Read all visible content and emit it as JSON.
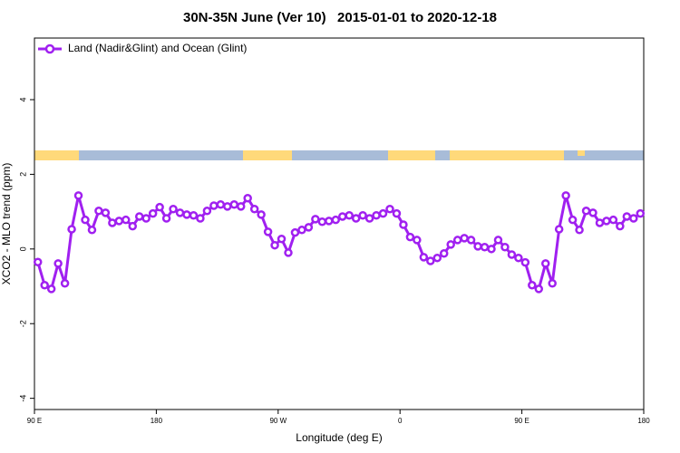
{
  "chart_data": {
    "type": "line",
    "title": "30N-35N June (Ver 10)   2015-01-01 to 2020-12-18",
    "x_label": "Longitude (deg E)",
    "y_label": "XCO2 - MLO trend (ppm)",
    "xlim": [
      90,
      540
    ],
    "xticks": [
      {
        "value": 90,
        "label": "90 E"
      },
      {
        "value": 180,
        "label": "180"
      },
      {
        "value": 270,
        "label": "90 W"
      },
      {
        "value": 360,
        "label": "0"
      },
      {
        "value": 450,
        "label": "90 E"
      },
      {
        "value": 540,
        "label": "180"
      }
    ],
    "ylim": [
      -4.3,
      5.65
    ],
    "yticks": [
      -4,
      -2,
      0,
      2,
      4
    ],
    "legend": "top-left",
    "x": [
      92.5,
      97.5,
      102.5,
      107.5,
      112.5,
      117.5,
      122.5,
      127.5,
      132.5,
      137.5,
      142.5,
      147.5,
      152.5,
      157.5,
      162.5,
      167.5,
      172.5,
      177.5,
      182.5,
      187.5,
      192.5,
      197.5,
      202.5,
      207.5,
      212.5,
      217.5,
      222.5,
      227.5,
      232.5,
      237.5,
      242.5,
      247.5,
      252.5,
      257.5,
      262.5,
      267.5,
      272.5,
      277.5,
      282.5,
      287.5,
      292.5,
      297.5,
      302.5,
      307.5,
      312.5,
      317.5,
      322.5,
      327.5,
      332.5,
      337.5,
      342.5,
      347.5,
      352.5,
      357.5,
      362.5,
      367.5,
      372.5,
      377.5,
      382.5,
      387.5,
      392.5,
      397.5,
      402.5,
      407.5,
      412.5,
      417.5,
      422.5,
      427.5,
      432.5,
      437.5,
      442.5,
      447.5,
      452.5,
      457.5,
      462.5,
      467.5,
      472.5,
      477.5,
      482.5,
      487.5,
      492.5,
      497.5,
      502.5,
      507.5,
      512.5,
      517.5,
      522.5,
      527.5,
      532.5,
      537.5
    ],
    "series": [
      {
        "name": "Land (Nadir&Glint) and Ocean (Glint)",
        "color": "#a020f0",
        "values": [
          -0.35,
          -0.97,
          -1.07,
          -0.39,
          -0.92,
          0.53,
          1.43,
          0.78,
          0.51,
          1.02,
          0.97,
          0.7,
          0.75,
          0.78,
          0.61,
          0.87,
          0.82,
          0.95,
          1.12,
          0.82,
          1.07,
          0.97,
          0.92,
          0.9,
          0.82,
          1.02,
          1.16,
          1.19,
          1.14,
          1.19,
          1.14,
          1.36,
          1.07,
          0.92,
          0.46,
          0.1,
          0.27,
          -0.1,
          0.44,
          0.51,
          0.58,
          0.8,
          0.73,
          0.75,
          0.78,
          0.87,
          0.9,
          0.82,
          0.9,
          0.82,
          0.9,
          0.95,
          1.07,
          0.95,
          0.65,
          0.32,
          0.24,
          -0.22,
          -0.32,
          -0.24,
          -0.12,
          0.12,
          0.24,
          0.29,
          0.24,
          0.07,
          0.05,
          0.0,
          0.24,
          0.05,
          -0.15,
          -0.24,
          -0.36,
          -0.97,
          -1.07,
          -0.39,
          -0.92,
          0.53,
          1.43,
          0.78,
          0.51,
          1.02,
          0.97,
          0.7,
          0.75,
          0.78,
          0.61,
          0.87,
          0.82,
          0.95
        ]
      }
    ]
  }
}
